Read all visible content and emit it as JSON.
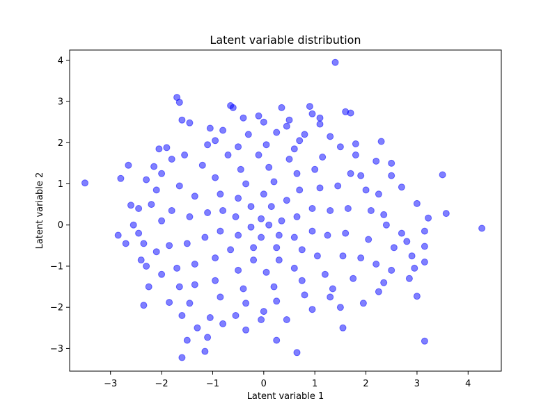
{
  "chart_data": {
    "type": "scatter",
    "title": "Latent variable distribution",
    "xlabel": "Latent variable 1",
    "ylabel": "Latent variable 2",
    "xlim": [
      -3.8,
      4.65
    ],
    "ylim": [
      -3.55,
      4.25
    ],
    "x_ticks": [
      -3,
      -2,
      -1,
      0,
      1,
      2,
      3,
      4
    ],
    "y_ticks": [
      -3,
      -2,
      -1,
      0,
      1,
      2,
      3,
      4
    ],
    "x_tick_labels": [
      "−3",
      "−2",
      "−1",
      "0",
      "1",
      "2",
      "3",
      "4"
    ],
    "y_tick_labels": [
      "−3",
      "−2",
      "−1",
      "0",
      "1",
      "2",
      "3",
      "4"
    ],
    "grid": false,
    "legend": "none",
    "marker_color": "#0000ff",
    "marker_alpha": 0.5,
    "series": [
      {
        "points": [
          [
            1.4,
            3.95
          ],
          [
            -1.7,
            3.1
          ],
          [
            -1.65,
            2.98
          ],
          [
            -0.65,
            2.9
          ],
          [
            -0.6,
            2.85
          ],
          [
            0.35,
            2.85
          ],
          [
            0.9,
            2.88
          ],
          [
            1.6,
            2.75
          ],
          [
            1.7,
            2.72
          ],
          [
            -0.1,
            2.65
          ],
          [
            -1.6,
            2.55
          ],
          [
            0.5,
            2.55
          ],
          [
            1.1,
            2.6
          ],
          [
            -2.15,
            1.42
          ],
          [
            -2.65,
            1.45
          ],
          [
            -3.5,
            1.02
          ],
          [
            -2.8,
            1.13
          ],
          [
            -2.6,
            0.48
          ],
          [
            -2.85,
            -0.25
          ],
          [
            3.5,
            1.22
          ],
          [
            2.3,
            2.03
          ],
          [
            1.8,
            1.97
          ],
          [
            2.5,
            1.2
          ],
          [
            2.7,
            0.92
          ],
          [
            3.0,
            0.52
          ],
          [
            3.57,
            0.28
          ],
          [
            3.22,
            0.17
          ],
          [
            3.15,
            -0.15
          ],
          [
            4.27,
            -0.08
          ],
          [
            3.15,
            -0.52
          ],
          [
            2.9,
            -0.75
          ],
          [
            3.15,
            -0.9
          ],
          [
            2.95,
            -1.05
          ],
          [
            2.85,
            -1.3
          ],
          [
            3.0,
            -1.73
          ],
          [
            2.25,
            -1.62
          ],
          [
            3.15,
            -2.82
          ],
          [
            1.55,
            -2.5
          ],
          [
            0.65,
            -3.1
          ],
          [
            0.25,
            -2.8
          ],
          [
            -1.6,
            -3.22
          ],
          [
            -1.5,
            -2.8
          ],
          [
            -1.15,
            -3.07
          ],
          [
            -1.3,
            -2.5
          ],
          [
            -1.1,
            -2.73
          ],
          [
            -0.35,
            -2.55
          ],
          [
            -1.85,
            -1.88
          ],
          [
            -2.25,
            -1.5
          ],
          [
            -2.3,
            -1.0
          ],
          [
            -2.4,
            -0.85
          ],
          [
            -2.35,
            -0.45
          ],
          [
            -2.45,
            -0.2
          ],
          [
            -2.1,
            0.85
          ],
          [
            -2.05,
            1.85
          ],
          [
            -1.9,
            1.88
          ],
          [
            -1.45,
            2.48
          ],
          [
            -1.05,
            2.35
          ],
          [
            -0.8,
            2.3
          ],
          [
            0.0,
            2.5
          ],
          [
            0.45,
            2.4
          ],
          [
            1.1,
            2.45
          ],
          [
            1.3,
            2.15
          ],
          [
            -0.3,
            2.2
          ],
          [
            0.25,
            2.25
          ],
          [
            0.8,
            2.2
          ],
          [
            1.5,
            1.9
          ],
          [
            2.2,
            1.55
          ],
          [
            2.5,
            1.5
          ],
          [
            2.25,
            0.75
          ],
          [
            2.4,
            0.0
          ],
          [
            2.7,
            -0.2
          ],
          [
            2.55,
            -0.55
          ],
          [
            2.2,
            -0.95
          ],
          [
            2.35,
            -1.4
          ],
          [
            1.95,
            -1.9
          ],
          [
            1.3,
            -1.75
          ],
          [
            0.95,
            -2.05
          ],
          [
            0.45,
            -2.3
          ],
          [
            -0.05,
            -2.3
          ],
          [
            -0.55,
            -2.2
          ],
          [
            -1.05,
            -2.25
          ],
          [
            -1.45,
            -1.9
          ],
          [
            -1.65,
            -1.5
          ],
          [
            -2.0,
            -1.2
          ],
          [
            -2.1,
            -0.65
          ],
          [
            -2.0,
            0.1
          ],
          [
            -2.2,
            0.5
          ],
          [
            -2.0,
            1.25
          ],
          [
            -1.55,
            1.7
          ],
          [
            -1.1,
            1.95
          ],
          [
            -0.5,
            1.9
          ],
          [
            0.05,
            1.95
          ],
          [
            0.6,
            1.85
          ],
          [
            1.15,
            1.65
          ],
          [
            1.7,
            1.25
          ],
          [
            2.0,
            0.85
          ],
          [
            2.1,
            0.35
          ],
          [
            2.05,
            -0.35
          ],
          [
            1.9,
            -0.8
          ],
          [
            1.75,
            -1.3
          ],
          [
            1.35,
            -1.55
          ],
          [
            0.8,
            -1.7
          ],
          [
            0.25,
            -1.85
          ],
          [
            -0.35,
            -1.9
          ],
          [
            -0.85,
            -1.75
          ],
          [
            -1.35,
            -1.45
          ],
          [
            -1.7,
            -1.05
          ],
          [
            -1.85,
            -0.5
          ],
          [
            -1.8,
            0.35
          ],
          [
            -1.65,
            0.95
          ],
          [
            -1.2,
            1.45
          ],
          [
            -0.7,
            1.7
          ],
          [
            -0.1,
            1.7
          ],
          [
            0.5,
            1.6
          ],
          [
            1.0,
            1.35
          ],
          [
            1.45,
            0.95
          ],
          [
            1.65,
            0.4
          ],
          [
            1.6,
            -0.2
          ],
          [
            1.55,
            -0.75
          ],
          [
            1.2,
            -1.2
          ],
          [
            0.75,
            -1.35
          ],
          [
            0.2,
            -1.5
          ],
          [
            -0.4,
            -1.55
          ],
          [
            -0.95,
            -1.35
          ],
          [
            -1.35,
            -0.95
          ],
          [
            -1.5,
            -0.45
          ],
          [
            -1.45,
            0.2
          ],
          [
            -1.35,
            0.7
          ],
          [
            -0.95,
            1.15
          ],
          [
            -0.45,
            1.35
          ],
          [
            0.1,
            1.4
          ],
          [
            0.65,
            1.25
          ],
          [
            1.1,
            0.9
          ],
          [
            1.3,
            0.35
          ],
          [
            1.25,
            -0.25
          ],
          [
            1.05,
            -0.75
          ],
          [
            0.6,
            -1.05
          ],
          [
            0.05,
            -1.15
          ],
          [
            -0.5,
            -1.1
          ],
          [
            -0.95,
            -0.8
          ],
          [
            -1.15,
            -0.3
          ],
          [
            -1.1,
            0.3
          ],
          [
            -0.85,
            0.75
          ],
          [
            -0.35,
            1.0
          ],
          [
            0.2,
            1.05
          ],
          [
            0.7,
            0.85
          ],
          [
            0.95,
            0.4
          ],
          [
            0.95,
            -0.15
          ],
          [
            0.75,
            -0.6
          ],
          [
            0.3,
            -0.85
          ],
          [
            -0.2,
            -0.85
          ],
          [
            -0.65,
            -0.6
          ],
          [
            -0.85,
            -0.15
          ],
          [
            -0.8,
            0.35
          ],
          [
            -0.5,
            0.65
          ],
          [
            0.0,
            0.75
          ],
          [
            0.45,
            0.6
          ],
          [
            0.65,
            0.2
          ],
          [
            0.6,
            -0.3
          ],
          [
            0.25,
            -0.55
          ],
          [
            -0.2,
            -0.55
          ],
          [
            -0.5,
            -0.25
          ],
          [
            -0.55,
            0.2
          ],
          [
            -0.25,
            0.45
          ],
          [
            0.15,
            0.45
          ],
          [
            0.35,
            0.1
          ],
          [
            0.3,
            -0.25
          ],
          [
            -0.05,
            -0.3
          ],
          [
            -0.25,
            -0.05
          ],
          [
            -0.05,
            0.15
          ],
          [
            0.1,
            0.0
          ],
          [
            -2.55,
            0.0
          ],
          [
            -2.45,
            0.4
          ],
          [
            -2.3,
            1.1
          ],
          [
            -1.8,
            1.6
          ],
          [
            -0.95,
            2.05
          ],
          [
            0.7,
            2.05
          ],
          [
            1.8,
            1.7
          ],
          [
            2.35,
            0.25
          ],
          [
            2.5,
            -1.1
          ],
          [
            1.5,
            -2.0
          ],
          [
            0.0,
            -2.1
          ],
          [
            -0.8,
            -2.4
          ],
          [
            -1.6,
            -2.2
          ],
          [
            -2.35,
            -1.95
          ],
          [
            -0.4,
            2.6
          ],
          [
            0.95,
            2.7
          ],
          [
            1.9,
            1.2
          ],
          [
            2.8,
            -0.4
          ],
          [
            -2.7,
            -0.45
          ]
        ]
      }
    ]
  }
}
